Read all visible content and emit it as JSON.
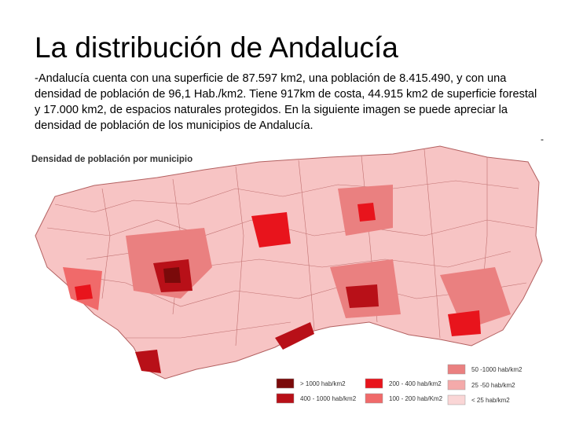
{
  "header": {
    "title": "La distribución de Andalucía",
    "text": "-Andalucía cuenta con una superficie de 87.597 km2, una población de 8.415.490, y con una densidad de población de 96,1 Hab./km2. Tiene 917km  de costa, 44.915 km2 de superficie forestal y 17.000 km2, de espacios naturales protegidos. En la siguiente imagen se puede apreciar la densidad de población de los municipios de Andalucía."
  },
  "mark": "-",
  "map": {
    "title": "Densidad de población por municipio",
    "legend": [
      {
        "label": "> 1000 hab/km2",
        "color": "#7a0a0a"
      },
      {
        "label": "400 - 1000 hab/km2",
        "color": "#b81018"
      },
      {
        "label": "200 - 400 hab/km2",
        "color": "#e8141c"
      },
      {
        "label": "100 - 200 hab/Km2",
        "color": "#f06a6a"
      },
      {
        "label": "50 -1000 hab/km2",
        "color": "#ea8080"
      },
      {
        "label": "25 -50 hab/km2",
        "color": "#f4aaaa"
      },
      {
        "label": "< 25 hab/km2",
        "color": "#fad6d6"
      }
    ]
  }
}
